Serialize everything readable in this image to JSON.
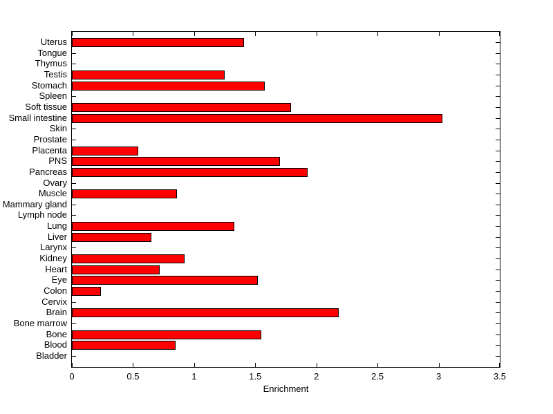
{
  "chart_data": {
    "type": "bar",
    "orientation": "horizontal",
    "title": "",
    "xlabel": "Enrichment",
    "ylabel": "",
    "xlim": [
      0,
      3.5
    ],
    "x_ticks": [
      0,
      0.5,
      1,
      1.5,
      2,
      2.5,
      3,
      3.5
    ],
    "x_tick_labels": [
      "0",
      "0.5",
      "1",
      "1.5",
      "2",
      "2.5",
      "3",
      "3.5"
    ],
    "grid": false,
    "legend": false,
    "bar_color": "#FF0000",
    "bar_edge_color": "#000000",
    "axis_color": "#000000",
    "background_color": "#FFFFFF",
    "categories": [
      "Uterus",
      "Tongue",
      "Thymus",
      "Testis",
      "Stomach",
      "Spleen",
      "Soft tissue",
      "Small intestine",
      "Skin",
      "Prostate",
      "Placenta",
      "PNS",
      "Pancreas",
      "Ovary",
      "Muscle",
      "Mammary gland",
      "Lymph node",
      "Lung",
      "Liver",
      "Larynx",
      "Kidney",
      "Heart",
      "Eye",
      "Colon",
      "Cervix",
      "Brain",
      "Bone marrow",
      "Bone",
      "Blood",
      "Bladder"
    ],
    "values": [
      1.41,
      0,
      0,
      1.25,
      1.58,
      0,
      1.79,
      3.03,
      0,
      0,
      0.54,
      1.7,
      1.93,
      0,
      0.86,
      0,
      0,
      1.33,
      0.65,
      0,
      0.92,
      0.72,
      1.52,
      0.24,
      0,
      2.18,
      0,
      1.55,
      0.85,
      0
    ]
  }
}
